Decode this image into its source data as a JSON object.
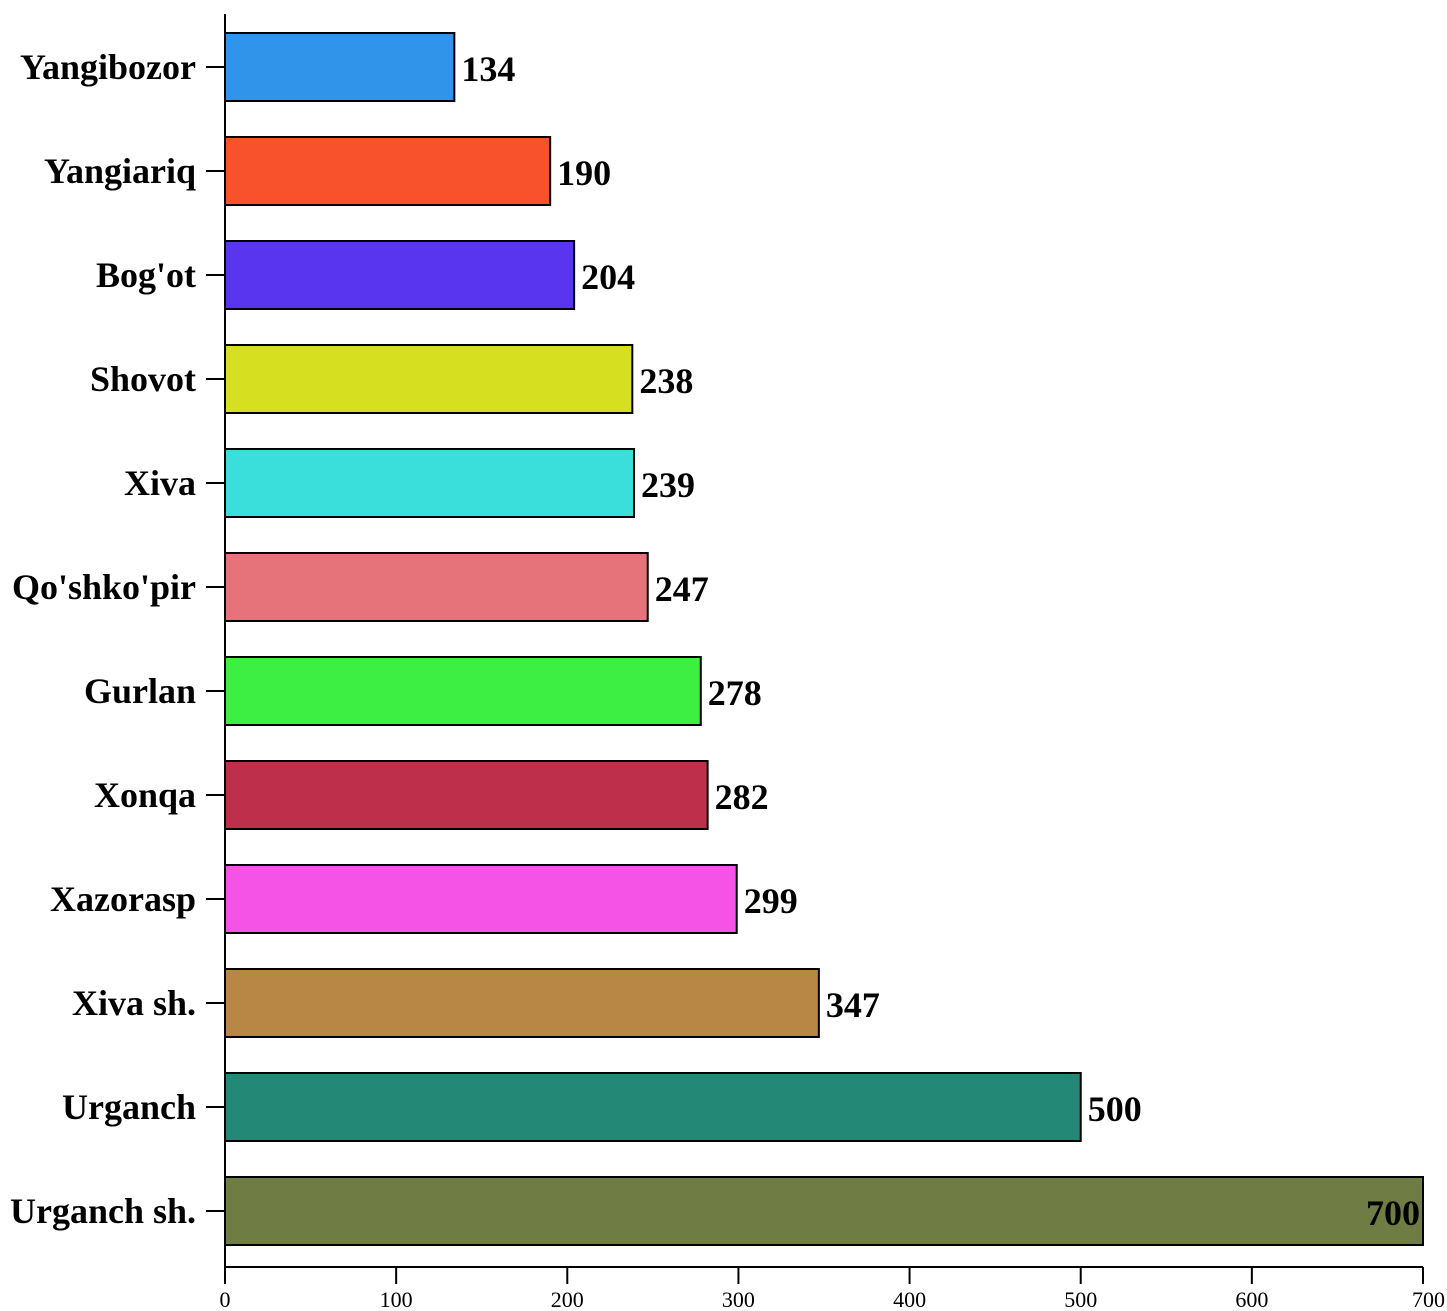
{
  "chart_data": {
    "type": "bar",
    "orientation": "horizontal",
    "title": "",
    "xlabel": "",
    "ylabel": "",
    "xlim": [
      0,
      700
    ],
    "x_ticks": [
      "0",
      "100",
      "200",
      "300",
      "400",
      "500",
      "600",
      "700"
    ],
    "grid": false,
    "legend": "none",
    "categories": [
      "Yangibozor",
      "Yangiariq",
      "Bog'ot",
      "Shovot",
      "Xiva",
      "Qo'shko'pir",
      "Gurlan",
      "Xonqa",
      "Xazorasp",
      "Xiva sh.",
      "Urganch",
      "Urganch sh."
    ],
    "values": [
      134,
      190,
      204,
      238,
      239,
      247,
      278,
      282,
      299,
      347,
      500,
      700
    ],
    "value_labels": [
      "134",
      "190",
      "204",
      "238",
      "239",
      "247",
      "278",
      "282",
      "299",
      "347",
      "500",
      "700"
    ],
    "colors": [
      "#3094EA",
      "#F8522D",
      "#5A35EF",
      "#D7E020",
      "#3ADFDC",
      "#E6737A",
      "#3DEF43",
      "#BD2F4B",
      "#F552E6",
      "#B98745",
      "#248877",
      "#6F7C43"
    ]
  }
}
